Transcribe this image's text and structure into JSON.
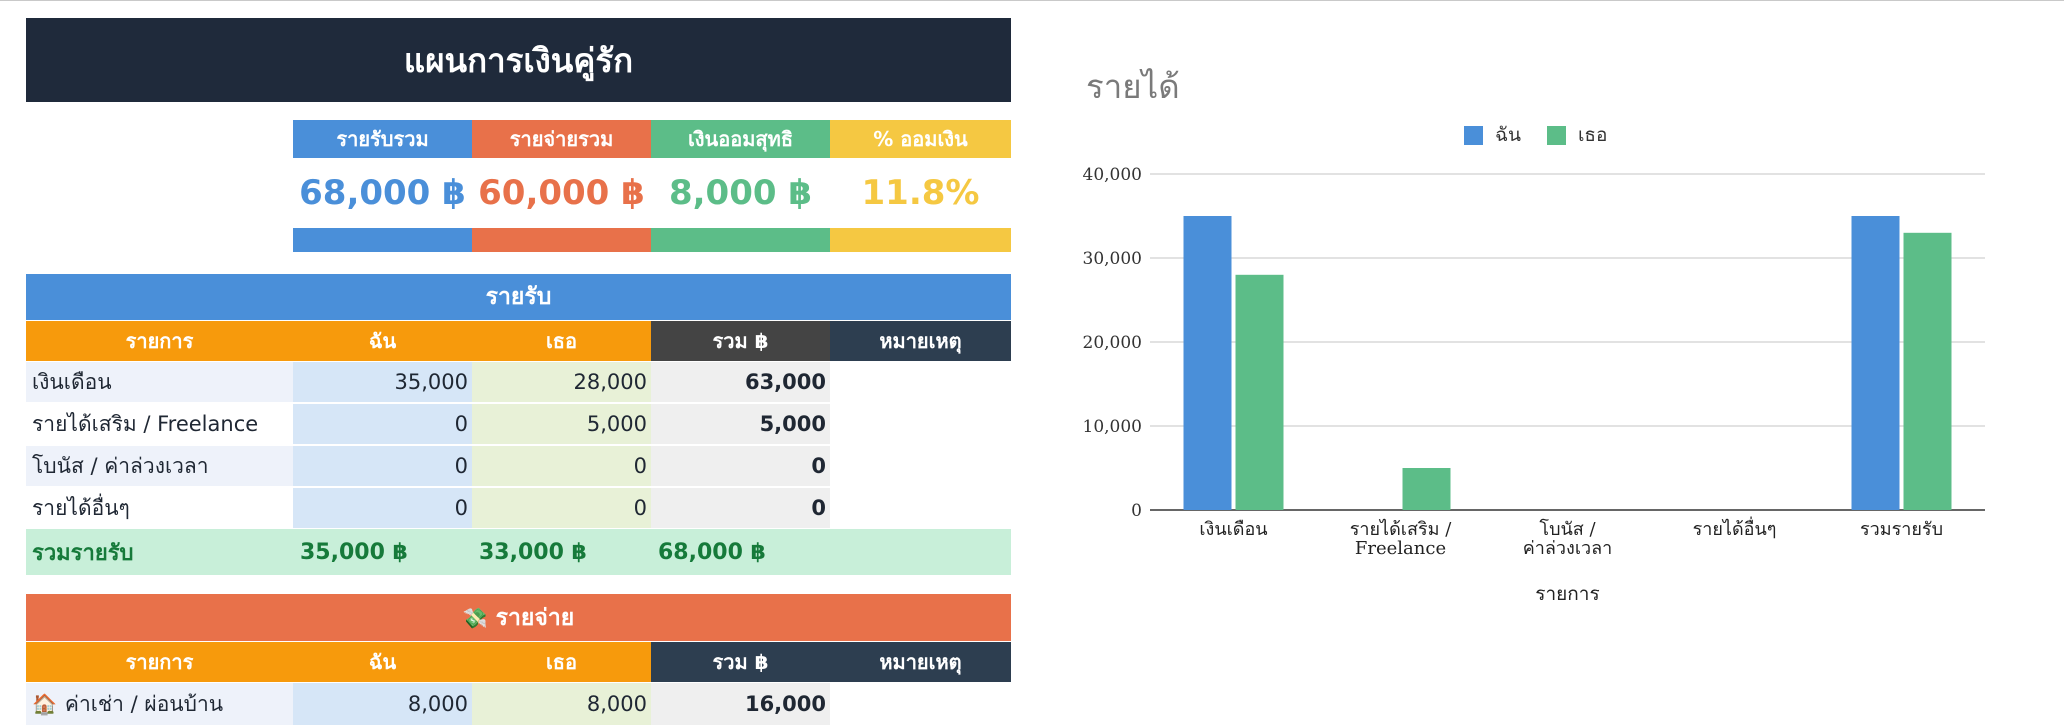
{
  "sheet": {
    "title": "แผนการเงินคู่รัก",
    "summary": [
      {
        "label": "รายรับรวม",
        "value": "68,000 ฿",
        "color": "#4a8fd9"
      },
      {
        "label": "รายจ่ายรวม",
        "value": "60,000 ฿",
        "color": "#e8714a"
      },
      {
        "label": "เงินออมสุทธิ",
        "value": "8,000 ฿",
        "color": "#5cbd88"
      },
      {
        "label": "% ออมเงิน",
        "value": "11.8%",
        "color": "#f5c842"
      }
    ],
    "income": {
      "banner": "รายรับ",
      "headers": {
        "item": "รายการ",
        "me": "ฉัน",
        "her": "เธอ",
        "total": "รวม ฿",
        "note": "หมายเหตุ"
      },
      "rows": [
        {
          "item": "เงินเดือน",
          "me": "35,000",
          "her": "28,000",
          "total": "63,000"
        },
        {
          "item": "รายได้เสริม / Freelance",
          "me": "0",
          "her": "5,000",
          "total": "5,000"
        },
        {
          "item": "โบนัส / ค่าล่วงเวลา",
          "me": "0",
          "her": "0",
          "total": "0"
        },
        {
          "item": "รายได้อื่นๆ",
          "me": "0",
          "her": "0",
          "total": "0"
        }
      ],
      "total": {
        "label": "รวมรายรับ",
        "me": "35,000 ฿",
        "her": "33,000 ฿",
        "total": "68,000 ฿"
      }
    },
    "expense": {
      "banner_icon": "money-wings-icon",
      "banner": "รายจ่าย",
      "headers": {
        "item": "รายการ",
        "me": "ฉัน",
        "her": "เธอ",
        "total": "รวม ฿",
        "note": "หมายเหตุ"
      },
      "rows": [
        {
          "icon": "house-icon",
          "item": "ค่าเช่า / ผ่อนบ้าน",
          "me": "8,000",
          "her": "8,000",
          "total": "16,000"
        }
      ]
    }
  },
  "chart_data": {
    "type": "bar",
    "title": "รายได้",
    "xlabel": "รายการ",
    "ylabel": "",
    "ylim": [
      0,
      40000
    ],
    "yticks": [
      "0",
      "10,000",
      "20,000",
      "30,000",
      "40,000"
    ],
    "categories": [
      [
        "เงินเดือน"
      ],
      [
        "รายได้เสริม /",
        "Freelance"
      ],
      [
        "โบนัส /",
        "ค่าล่วงเวลา"
      ],
      [
        "รายได้อื่นๆ"
      ],
      [
        "รวมรายรับ"
      ]
    ],
    "series": [
      {
        "name": "ฉัน",
        "color": "#4a8fd9",
        "values": [
          35000,
          0,
          0,
          0,
          35000
        ]
      },
      {
        "name": "เธอ",
        "color": "#5cbd88",
        "values": [
          28000,
          5000,
          0,
          0,
          33000
        ]
      }
    ],
    "legend_position": "top-center",
    "grid": true
  }
}
